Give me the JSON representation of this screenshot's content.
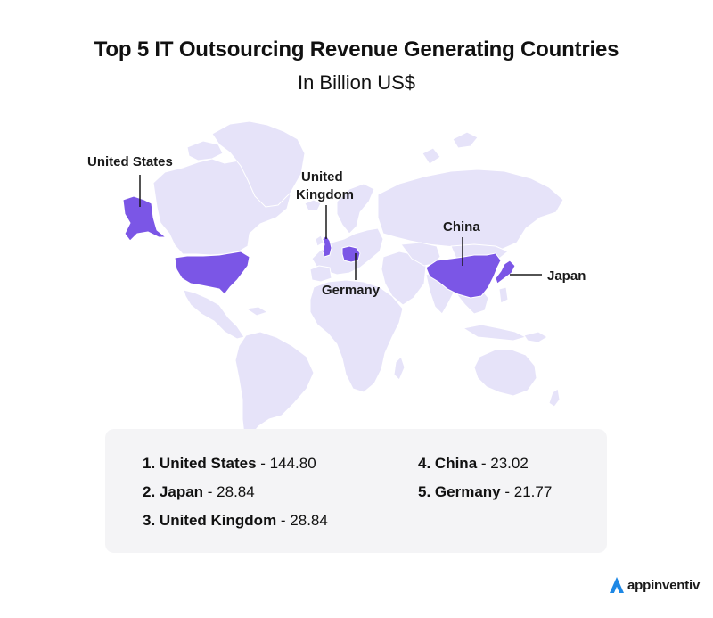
{
  "title": "Top 5 IT Outsourcing Revenue Generating Countries",
  "subtitle": "In Billion US$",
  "colors": {
    "land": "#e6e3f9",
    "highlight": "#7b56e6",
    "border": "#ffffff",
    "legend_bg": "#f4f4f6",
    "logo_accent": "#1e88e5"
  },
  "map_labels": {
    "us": "United States",
    "uk_line1": "United",
    "uk_line2": "Kingdom",
    "china": "China",
    "japan": "Japan",
    "germany": "Germany"
  },
  "ranking": [
    {
      "rank": "1.",
      "country": "United States",
      "value": "144.80"
    },
    {
      "rank": "2.",
      "country": "Japan",
      "value": "28.84"
    },
    {
      "rank": "3.",
      "country": "United Kingdom",
      "value": "28.84"
    },
    {
      "rank": "4.",
      "country": "China",
      "value": "23.02"
    },
    {
      "rank": "5.",
      "country": "Germany",
      "value": "21.77"
    }
  ],
  "separator": " - ",
  "logo": {
    "text": "appinventiv",
    "icon": "appinventiv-logo-icon"
  }
}
